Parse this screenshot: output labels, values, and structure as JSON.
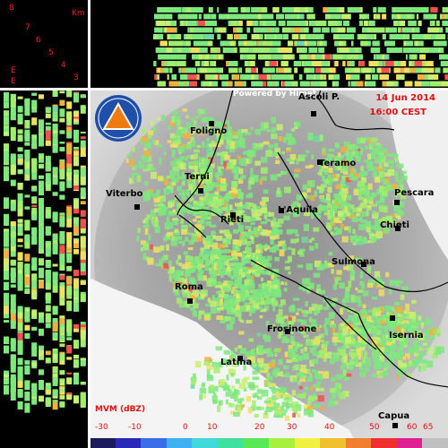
{
  "cross_section": {
    "unit_label": "Km",
    "height_ticks": [
      "8",
      "7",
      "6",
      "5",
      "4",
      "3"
    ],
    "corner_marks": [
      "E",
      "E"
    ]
  },
  "map": {
    "powered_by": "Powered by Himet",
    "date": "14 Jun 2014",
    "time": "16:00 CEST",
    "cities": [
      {
        "name": "Foligno"
      },
      {
        "name": "Ascoli P."
      },
      {
        "name": "Terni"
      },
      {
        "name": "Teramo"
      },
      {
        "name": "Viterbo"
      },
      {
        "name": "Pescara"
      },
      {
        "name": "Rieti"
      },
      {
        "name": "L'Aquila"
      },
      {
        "name": "Chieti"
      },
      {
        "name": "Sulmona"
      },
      {
        "name": "Roma"
      },
      {
        "name": "Frosinone"
      },
      {
        "name": "Isernia"
      },
      {
        "name": "Latina"
      },
      {
        "name": "Capua"
      }
    ],
    "logo_icon": "civil-protection-logo-icon"
  },
  "legend": {
    "title": "MVM (dBZ)",
    "ticks": [
      "-30",
      "-10",
      "0",
      "10",
      "20",
      "30",
      "40",
      "50",
      "60",
      "65"
    ],
    "colors": [
      "#1b1b5e",
      "#2a2ab8",
      "#3a6ee8",
      "#3fb0f0",
      "#40d8d8",
      "#40e0a0",
      "#58e858",
      "#a8f040",
      "#f0f040",
      "#f0c030",
      "#f08030",
      "#f03030",
      "#e02090",
      "#c0c0c0"
    ]
  },
  "colors": {
    "accent_red": "#e01010",
    "echo_low": "#7ee87e",
    "echo_mid": "#f0e060",
    "echo_high": "#f05050"
  }
}
